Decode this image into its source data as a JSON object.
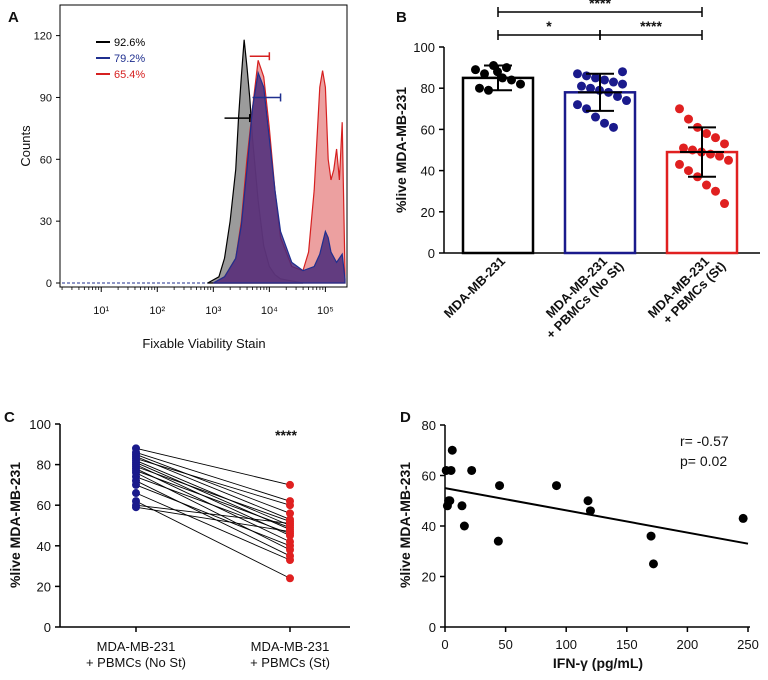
{
  "chart_data": [
    {
      "panel": "A",
      "type": "area",
      "title": "",
      "xlabel": "Fixable Viability Stain",
      "ylabel": "Counts",
      "x_scale": "log",
      "xticks": [
        "10¹",
        "10²",
        "10³",
        "10⁴",
        "10⁵"
      ],
      "yticks": [
        "0",
        "30",
        "60",
        "90",
        "120"
      ],
      "ylim": [
        0,
        130
      ],
      "series": [
        {
          "name": "92.6%",
          "color": "#000000",
          "fill": "#7a7a7a",
          "x": [
            2.9,
            3.1,
            3.2,
            3.3,
            3.4,
            3.45,
            3.5,
            3.55,
            3.6,
            3.65,
            3.7,
            3.8,
            3.9,
            4.0,
            4.1,
            4.2,
            4.4,
            4.6
          ],
          "y": [
            0,
            3,
            12,
            30,
            55,
            80,
            100,
            118,
            105,
            90,
            70,
            40,
            18,
            8,
            4,
            2,
            1,
            0
          ]
        },
        {
          "name": "79.2%",
          "color": "#1f2f8f",
          "fill": "#4a2a7a",
          "x": [
            3.0,
            3.2,
            3.4,
            3.5,
            3.6,
            3.7,
            3.8,
            3.9,
            4.0,
            4.1,
            4.2,
            4.4,
            4.6,
            4.8,
            4.9,
            5.0,
            5.05,
            5.1,
            5.2,
            5.3,
            5.35
          ],
          "y": [
            0,
            3,
            12,
            28,
            55,
            85,
            102,
            95,
            70,
            45,
            25,
            10,
            6,
            8,
            14,
            25,
            22,
            15,
            10,
            14,
            2
          ]
        },
        {
          "name": "65.4%",
          "color": "#d62020",
          "fill": "#e58080",
          "x": [
            3.0,
            3.2,
            3.4,
            3.5,
            3.6,
            3.7,
            3.8,
            3.9,
            4.0,
            4.1,
            4.2,
            4.4,
            4.6,
            4.7,
            4.8,
            4.9,
            4.95,
            5.0,
            5.05,
            5.1,
            5.15,
            5.2,
            5.25,
            5.3,
            5.35
          ],
          "y": [
            0,
            3,
            12,
            30,
            60,
            85,
            108,
            100,
            75,
            45,
            22,
            8,
            6,
            15,
            45,
            95,
            103,
            95,
            60,
            50,
            55,
            65,
            50,
            78,
            5
          ]
        }
      ],
      "gate_bars": [
        {
          "series": "92.6%",
          "x_from": 3.2,
          "x_to": 3.65,
          "y": 80,
          "color": "#000000"
        },
        {
          "series": "79.2%",
          "x_from": 3.7,
          "x_to": 4.2,
          "y": 90,
          "color": "#1f2f8f"
        },
        {
          "series": "65.4%",
          "x_from": 3.65,
          "x_to": 4.0,
          "y": 110,
          "color": "#d62020"
        }
      ]
    },
    {
      "panel": "B",
      "type": "bar",
      "xlabel": "",
      "ylabel": "%live MDA-MB-231",
      "ylim": [
        0,
        100
      ],
      "yticks": [
        "0",
        "20",
        "40",
        "60",
        "80",
        "100"
      ],
      "categories": [
        {
          "line1": "MDA-MB-231",
          "line2": ""
        },
        {
          "line1": "MDA-MB-231",
          "line2": "+ PBMCs (No St)"
        },
        {
          "line1": "MDA-MB-231",
          "line2": "+ PBMCs (St)"
        }
      ],
      "bars": [
        {
          "mean": 85,
          "sd": 6,
          "edge": "#000000",
          "point_color": "#000000",
          "points": [
            89,
            87,
            91,
            85,
            84,
            82,
            80,
            79,
            88,
            90
          ]
        },
        {
          "mean": 78,
          "sd": 9,
          "edge": "#1a1a8c",
          "point_color": "#1a1a8c",
          "points": [
            87,
            86,
            85,
            84,
            83,
            82,
            81,
            80,
            79,
            78,
            76,
            74,
            72,
            70,
            66,
            63,
            61,
            88
          ]
        },
        {
          "mean": 49,
          "sd": 12,
          "edge": "#e02020",
          "point_color": "#e02020",
          "points": [
            70,
            65,
            61,
            58,
            56,
            53,
            51,
            50,
            49,
            48,
            47,
            45,
            43,
            40,
            37,
            33,
            30,
            24
          ]
        }
      ],
      "significance": [
        {
          "from": 0,
          "to": 1,
          "label": "*"
        },
        {
          "from": 1,
          "to": 2,
          "label": "****"
        },
        {
          "from": 0,
          "to": 2,
          "label": "****"
        }
      ]
    },
    {
      "panel": "C",
      "type": "line",
      "xlabel": "",
      "ylabel": "%live MDA-MB-231",
      "ylim": [
        0,
        100
      ],
      "yticks": [
        "0",
        "20",
        "40",
        "60",
        "80",
        "100"
      ],
      "categories": [
        {
          "line1": "MDA-MB-231",
          "line2": "+ PBMCs (No St)"
        },
        {
          "line1": "MDA-MB-231",
          "line2": "+ PBMCs (St)"
        }
      ],
      "annotation": "****",
      "colors": {
        "left": "#1a1a8c",
        "right": "#e02020"
      },
      "pairs": [
        [
          88,
          70
        ],
        [
          86,
          62
        ],
        [
          85,
          56
        ],
        [
          84,
          53
        ],
        [
          83,
          60
        ],
        [
          82,
          50
        ],
        [
          81,
          48
        ],
        [
          80,
          45
        ],
        [
          79,
          52
        ],
        [
          78,
          42
        ],
        [
          77,
          49
        ],
        [
          76,
          38
        ],
        [
          74,
          46
        ],
        [
          72,
          35
        ],
        [
          70,
          40
        ],
        [
          66,
          33
        ],
        [
          62,
          24
        ],
        [
          60,
          51
        ],
        [
          59,
          47
        ]
      ]
    },
    {
      "panel": "D",
      "type": "scatter",
      "xlabel": "IFN-γ (pg/mL)",
      "ylabel": "%live MDA-MB-231",
      "xlim": [
        0,
        250
      ],
      "ylim": [
        0,
        80
      ],
      "xticks": [
        "0",
        "50",
        "100",
        "150",
        "200",
        "250"
      ],
      "yticks": [
        "0",
        "20",
        "40",
        "60",
        "80"
      ],
      "annotations": [
        "r= -0.57",
        "p= 0.02"
      ],
      "points": [
        [
          1,
          62
        ],
        [
          2,
          48
        ],
        [
          3,
          50
        ],
        [
          5,
          62
        ],
        [
          6,
          70
        ],
        [
          4,
          50
        ],
        [
          14,
          48
        ],
        [
          16,
          40
        ],
        [
          22,
          62
        ],
        [
          44,
          34
        ],
        [
          45,
          56
        ],
        [
          92,
          56
        ],
        [
          118,
          50
        ],
        [
          120,
          46
        ],
        [
          170,
          36
        ],
        [
          172,
          25
        ],
        [
          246,
          43
        ]
      ],
      "fit": {
        "x": [
          0,
          250
        ],
        "y": [
          55,
          33
        ]
      }
    }
  ]
}
